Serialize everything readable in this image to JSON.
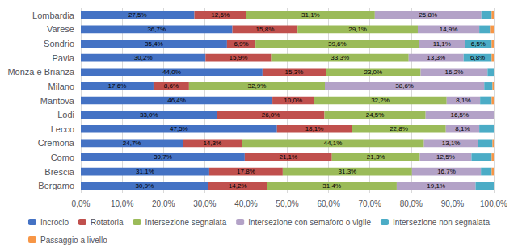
{
  "chart_data": {
    "type": "bar",
    "orientation": "horizontal",
    "stacked": true,
    "data_labels": true,
    "grid": true,
    "legend": "bottom",
    "categories": [
      "Lombardia",
      "Varese",
      "Sondrio",
      "Pavia",
      "Monza e Brianza",
      "Milano",
      "Mantova",
      "Lodi",
      "Lecco",
      "Cremona",
      "Como",
      "Brescia",
      "Bergamo"
    ],
    "series": [
      {
        "name": "Incrocio",
        "color": "#4472C4",
        "values": [
          27.5,
          36.7,
          35.4,
          30.2,
          44.0,
          17.6,
          46.4,
          33.0,
          47.5,
          24.7,
          39.7,
          31.1,
          30.9
        ],
        "value_labels": [
          "27,5%",
          "36,7%",
          "35,4%",
          "30,2%",
          "44,0%",
          "17,6%",
          "46,4%",
          "33,0%",
          "47,5%",
          "24,7%",
          "39,7%",
          "31,1%",
          "30,9%"
        ]
      },
      {
        "name": "Rotatoria",
        "color": "#C0504D",
        "values": [
          12.6,
          15.8,
          6.9,
          15.9,
          15.3,
          8.6,
          10.0,
          26.0,
          18.1,
          14.3,
          21.1,
          17.8,
          14.2
        ],
        "value_labels": [
          "12,6%",
          "15,8%",
          "6,9%",
          "15,9%",
          "15,3%",
          "8,6%",
          "10,0%",
          "26,0%",
          "18,1%",
          "14,3%",
          "21,1%",
          "17,8%",
          "14,2%"
        ]
      },
      {
        "name": "Intersezione segnalata",
        "color": "#9BBB59",
        "values": [
          31.1,
          29.1,
          39.6,
          33.3,
          23.0,
          32.9,
          32.2,
          24.5,
          22.8,
          44.1,
          21.3,
          31.3,
          31.4
        ],
        "value_labels": [
          "31,1%",
          "29,1%",
          "39,6%",
          "33,3%",
          "23,0%",
          "32,9%",
          "32,2%",
          "24,5%",
          "22,8%",
          "44,1%",
          "21,3%",
          "31,3%",
          "31,4%"
        ]
      },
      {
        "name": "Intersezione con semaforo o vigile",
        "color": "#B3A2C7",
        "values": [
          25.8,
          14.9,
          11.1,
          13.3,
          16.2,
          38.6,
          8.1,
          16.5,
          8.1,
          13.1,
          12.5,
          16.7,
          19.1
        ],
        "value_labels": [
          "25,8%",
          "14,9%",
          "11,1%",
          "13,3%",
          "16,2%",
          "38,6%",
          "8,1%",
          "16,5%",
          "8,1%",
          "13,1%",
          "12,5%",
          "16,7%",
          "19,1%"
        ]
      },
      {
        "name": "Intersezione non segnalata",
        "color": "#4BACC6",
        "values": [
          2.5,
          2.6,
          6.5,
          6.8,
          1.5,
          2.0,
          2.8,
          0.0,
          3.5,
          3.5,
          4.9,
          2.6,
          4.4
        ],
        "value_labels": [
          null,
          null,
          "6,5%",
          "6,8%",
          null,
          null,
          null,
          null,
          null,
          null,
          null,
          null,
          null
        ]
      },
      {
        "name": "Passaggio a livello",
        "color": "#F79646",
        "values": [
          0.5,
          0.9,
          0.5,
          0.5,
          0.0,
          0.3,
          0.5,
          0.0,
          0.0,
          0.3,
          0.5,
          0.5,
          0.0
        ],
        "value_labels": [
          null,
          null,
          null,
          null,
          null,
          null,
          null,
          null,
          null,
          null,
          null,
          null,
          null
        ]
      }
    ],
    "xlim": [
      0,
      100
    ],
    "xticks": [
      {
        "value": 0,
        "label": "0,0%"
      },
      {
        "value": 10,
        "label": "10,0%"
      },
      {
        "value": 20,
        "label": "20,0%"
      },
      {
        "value": 30,
        "label": "30,0%"
      },
      {
        "value": 40,
        "label": "40,0%"
      },
      {
        "value": 50,
        "label": "50,0%"
      },
      {
        "value": 60,
        "label": "60,0%"
      },
      {
        "value": 70,
        "label": "70,0%"
      },
      {
        "value": 80,
        "label": "80,0%"
      },
      {
        "value": 90,
        "label": "90,0%"
      },
      {
        "value": 100,
        "label": "100,0%"
      }
    ]
  }
}
